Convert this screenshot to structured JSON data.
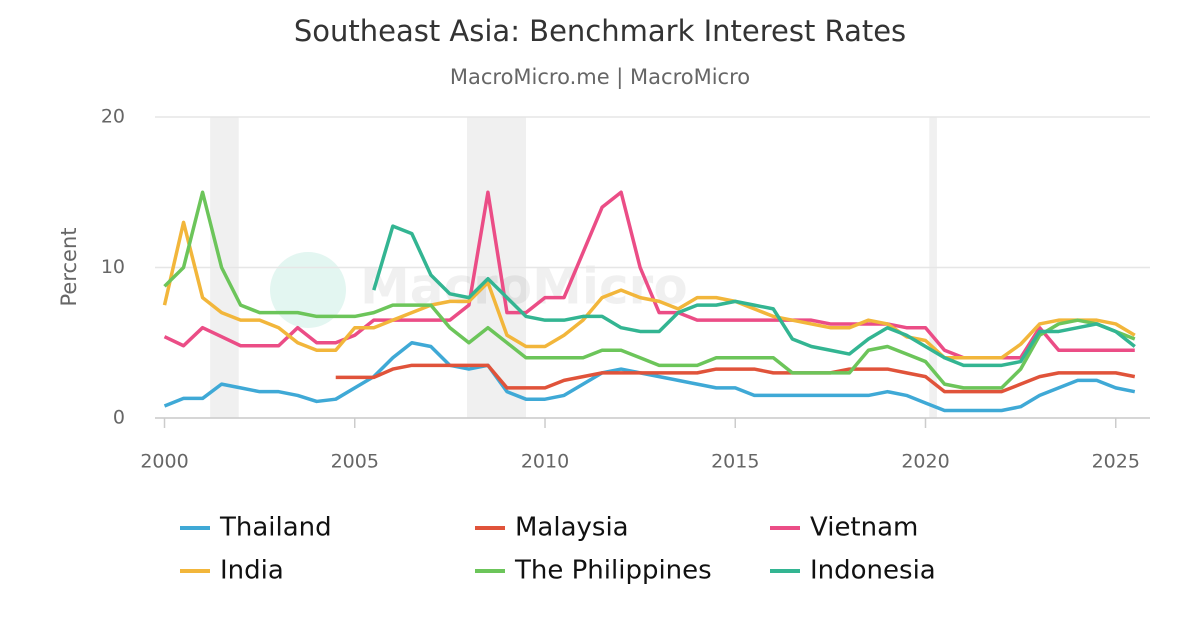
{
  "chart_data": {
    "type": "line",
    "title": "Southeast Asia: Benchmark Interest Rates",
    "subtitle": "MacroMicro.me | MacroMicro",
    "y_label": "Percent",
    "watermark": "MacroMicro",
    "x": [
      2000,
      2000.5,
      2001,
      2001.5,
      2002,
      2002.5,
      2003,
      2003.5,
      2004,
      2004.5,
      2005,
      2005.5,
      2006,
      2006.5,
      2007,
      2007.5,
      2008,
      2008.5,
      2009,
      2009.5,
      2010,
      2010.5,
      2011,
      2011.5,
      2012,
      2012.5,
      2013,
      2013.5,
      2014,
      2014.5,
      2015,
      2015.5,
      2016,
      2016.5,
      2017,
      2017.5,
      2018,
      2018.5,
      2019,
      2019.5,
      2020,
      2020.5,
      2021,
      2021.5,
      2022,
      2022.5,
      2023,
      2023.5,
      2024,
      2024.5,
      2025,
      2025.5
    ],
    "xlim": [
      1999.75,
      2025.9
    ],
    "xticks": [
      2000,
      2005,
      2010,
      2015,
      2020,
      2025
    ],
    "ylim": [
      0,
      20
    ],
    "yticks": [
      0,
      10,
      20
    ],
    "grid": true,
    "shaded_periods": [
      [
        2001.2,
        2001.95
      ],
      [
        2007.95,
        2009.5
      ],
      [
        2020.1,
        2020.3
      ]
    ],
    "series": [
      {
        "name": "Thailand",
        "color": "#3fa9d6",
        "values": [
          0.8,
          1.3,
          1.3,
          2.25,
          2.0,
          1.75,
          1.75,
          1.5,
          1.1,
          1.25,
          2.0,
          2.75,
          4.0,
          5.0,
          4.75,
          3.5,
          3.25,
          3.5,
          1.75,
          1.25,
          1.25,
          1.5,
          2.25,
          3.0,
          3.25,
          3.0,
          2.75,
          2.5,
          2.25,
          2.0,
          2.0,
          1.5,
          1.5,
          1.5,
          1.5,
          1.5,
          1.5,
          1.5,
          1.75,
          1.5,
          1.0,
          0.5,
          0.5,
          0.5,
          0.5,
          0.75,
          1.5,
          2.0,
          2.5,
          2.5,
          2.0,
          1.75
        ]
      },
      {
        "name": "Malaysia",
        "color": "#e0533a",
        "values": [
          null,
          null,
          null,
          null,
          null,
          null,
          null,
          null,
          null,
          2.7,
          2.7,
          2.7,
          3.25,
          3.5,
          3.5,
          3.5,
          3.5,
          3.5,
          2.0,
          2.0,
          2.0,
          2.5,
          2.75,
          3.0,
          3.0,
          3.0,
          3.0,
          3.0,
          3.0,
          3.25,
          3.25,
          3.25,
          3.0,
          3.0,
          3.0,
          3.0,
          3.25,
          3.25,
          3.25,
          3.0,
          2.75,
          1.75,
          1.75,
          1.75,
          1.75,
          2.25,
          2.75,
          3.0,
          3.0,
          3.0,
          3.0,
          2.75
        ]
      },
      {
        "name": "Vietnam",
        "color": "#eb4d86",
        "values": [
          5.4,
          4.8,
          6.0,
          5.4,
          4.8,
          4.8,
          4.8,
          6.0,
          5.0,
          5.0,
          5.5,
          6.5,
          6.5,
          6.5,
          6.5,
          6.5,
          7.5,
          15,
          7.0,
          7.0,
          8.0,
          8.0,
          11.0,
          14.0,
          15.0,
          10.0,
          7.0,
          7.0,
          6.5,
          6.5,
          6.5,
          6.5,
          6.5,
          6.5,
          6.5,
          6.25,
          6.25,
          6.25,
          6.25,
          6.0,
          6.0,
          4.5,
          4.0,
          4.0,
          4.0,
          4.0,
          6.0,
          4.5,
          4.5,
          4.5,
          4.5,
          4.5
        ]
      },
      {
        "name": "India",
        "color": "#f2b63b",
        "values": [
          7.5,
          13.0,
          8.0,
          7.0,
          6.5,
          6.5,
          6.0,
          5.0,
          4.5,
          4.5,
          6.0,
          6.0,
          6.5,
          7.0,
          7.5,
          7.75,
          7.75,
          9.0,
          5.5,
          4.75,
          4.75,
          5.5,
          6.5,
          8.0,
          8.5,
          8.0,
          7.75,
          7.25,
          8.0,
          8.0,
          7.75,
          7.25,
          6.75,
          6.5,
          6.25,
          6.0,
          6.0,
          6.5,
          6.25,
          5.4,
          5.15,
          4.0,
          4.0,
          4.0,
          4.0,
          4.9,
          6.25,
          6.5,
          6.5,
          6.5,
          6.25,
          5.5
        ]
      },
      {
        "name": "The Philippines",
        "color": "#6cc55a",
        "values": [
          8.75,
          10.0,
          15.0,
          10.0,
          7.5,
          7.0,
          7.0,
          7.0,
          6.75,
          6.75,
          6.75,
          7.0,
          7.5,
          7.5,
          7.5,
          6.0,
          5.0,
          6.0,
          5.0,
          4.0,
          4.0,
          4.0,
          4.0,
          4.5,
          4.5,
          4.0,
          3.5,
          3.5,
          3.5,
          4.0,
          4.0,
          4.0,
          4.0,
          3.0,
          3.0,
          3.0,
          3.0,
          4.5,
          4.75,
          4.25,
          3.75,
          2.25,
          2.0,
          2.0,
          2.0,
          3.25,
          5.5,
          6.25,
          6.5,
          6.25,
          5.75,
          5.25
        ]
      },
      {
        "name": "Indonesia",
        "color": "#33b592",
        "values": [
          null,
          null,
          null,
          null,
          null,
          null,
          null,
          null,
          null,
          null,
          null,
          8.5,
          12.75,
          12.25,
          9.5,
          8.25,
          8.0,
          9.25,
          8.0,
          6.75,
          6.5,
          6.5,
          6.75,
          6.75,
          6.0,
          5.75,
          5.75,
          7.0,
          7.5,
          7.5,
          7.75,
          7.5,
          7.25,
          5.25,
          4.75,
          4.5,
          4.25,
          5.25,
          6.0,
          5.5,
          4.75,
          4.0,
          3.5,
          3.5,
          3.5,
          3.75,
          5.75,
          5.75,
          6.0,
          6.25,
          5.75,
          4.75
        ]
      }
    ]
  }
}
